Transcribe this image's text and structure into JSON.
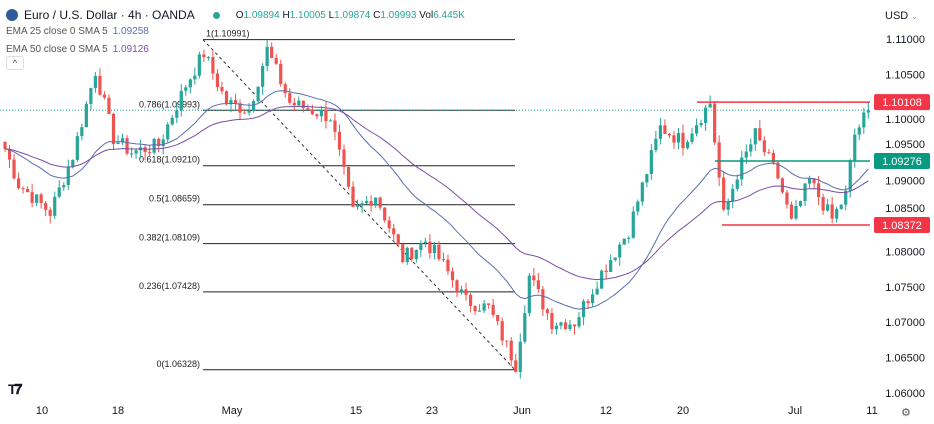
{
  "header": {
    "title": "Euro / U.S. Dollar · 4h · OANDA",
    "open": "1.09894",
    "high": "1.10005",
    "low": "1.09874",
    "close": "1.09993",
    "volume": "6.445K",
    "o_label": "O",
    "h_label": "H",
    "l_label": "L",
    "c_label": "C",
    "vol_label": "Vol"
  },
  "indicators": [
    {
      "label": "EMA 25 close 0 SMA 5",
      "value": "1.09258",
      "color": "#5b6db0"
    },
    {
      "label": "EMA 50 close 0 SMA 5",
      "value": "1.09126",
      "color": "#7a4ca8"
    }
  ],
  "currency": "USD",
  "collapse_icon": "^",
  "gear_icon": "⚙",
  "colors": {
    "up": "#26a69a",
    "down": "#ef5350",
    "resistance": "#f23645",
    "support_mid": "#089981"
  },
  "chart_data": {
    "type": "candlestick",
    "title": "Euro / U.S. Dollar · 4h · OANDA",
    "ylim": [
      1.0575,
      1.1125
    ],
    "y_ticks": [
      "1.11000",
      "1.10500",
      "1.10000",
      "1.09500",
      "1.09000",
      "1.08500",
      "1.08000",
      "1.07500",
      "1.07000",
      "1.06500",
      "1.06000"
    ],
    "x_ticks": [
      "10",
      "18",
      "May",
      "15",
      "23",
      "Jun",
      "12",
      "20",
      "Jul",
      "11"
    ],
    "price_path": [
      [
        0,
        1.0945
      ],
      [
        3,
        1.0895
      ],
      [
        10,
        1.0855
      ],
      [
        15,
        1.0935
      ],
      [
        20,
        1.1055
      ],
      [
        24,
        1.096
      ],
      [
        28,
        1.094
      ],
      [
        34,
        1.095
      ],
      [
        40,
        1.1035
      ],
      [
        44,
        1.108
      ],
      [
        49,
        1.101
      ],
      [
        54,
        1.1
      ],
      [
        58,
        1.1085
      ],
      [
        63,
        1.101
      ],
      [
        72,
        1.099
      ],
      [
        77,
        1.0855
      ],
      [
        82,
        1.088
      ],
      [
        88,
        1.079
      ],
      [
        93,
        1.0815
      ],
      [
        96,
        1.079
      ],
      [
        102,
        1.073
      ],
      [
        107,
        1.072
      ],
      [
        113,
        1.064
      ],
      [
        116,
        1.0765
      ],
      [
        121,
        1.07
      ],
      [
        126,
        1.07
      ],
      [
        132,
        1.077
      ],
      [
        138,
        1.083
      ],
      [
        145,
        1.0975
      ],
      [
        150,
        1.0955
      ],
      [
        156,
        1.101
      ],
      [
        159,
        1.085
      ],
      [
        162,
        1.091
      ],
      [
        166,
        1.0965
      ],
      [
        171,
        1.0905
      ],
      [
        174,
        1.084
      ],
      [
        178,
        1.09
      ],
      [
        183,
        1.0845
      ],
      [
        186,
        1.088
      ],
      [
        188,
        1.0965
      ],
      [
        191,
        1.0999
      ]
    ],
    "fibonacci": [
      {
        "label": "1(1.10991)",
        "price": 1.10991
      },
      {
        "label": "0.786(1.09993)",
        "price": 1.09993
      },
      {
        "label": "0.618(1.09210)",
        "price": 1.0921
      },
      {
        "label": "0.5(1.08659)",
        "price": 1.08659
      },
      {
        "label": "0.382(1.08109)",
        "price": 1.08109
      },
      {
        "label": "0.236(1.07428)",
        "price": 1.07428
      },
      {
        "label": "0(1.06328)",
        "price": 1.06328
      }
    ],
    "levels": [
      {
        "label": "1.10108",
        "price": 1.10108,
        "color": "#f23645"
      },
      {
        "label": "1.09276",
        "price": 1.09276,
        "color": "#089981"
      },
      {
        "label": "1.08372",
        "price": 1.08372,
        "color": "#f23645"
      }
    ],
    "last_price": 1.09993
  }
}
